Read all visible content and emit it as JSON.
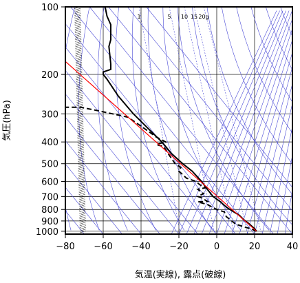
{
  "chart_data": {
    "type": "line",
    "xlabel": "気温(実線), 露点(破線)",
    "ylabel": "気圧(hPa)",
    "xlim": [
      -80,
      40
    ],
    "ylim_hpa": [
      1030,
      100
    ],
    "y_scale": "log (inverted)",
    "x_ticks": [
      "−80",
      "−60",
      "−40",
      "−20",
      "0",
      "20",
      "40"
    ],
    "x_tick_values": [
      -80,
      -60,
      -40,
      -20,
      0,
      20,
      40
    ],
    "y_ticks": [
      "100",
      "200",
      "300",
      "400",
      "500",
      "600",
      "700",
      "800",
      "900",
      "1000"
    ],
    "y_tick_values": [
      100,
      200,
      300,
      400,
      500,
      600,
      700,
      800,
      900,
      1000
    ],
    "mixing_ratio_labels": [
      "1",
      "5",
      "10",
      "15",
      "20g"
    ],
    "mixing_ratio_values": [
      1,
      5,
      10,
      15,
      20
    ],
    "grid": true,
    "series": [
      {
        "style": "solid",
        "color": "#000000",
        "points": [
          [
            21,
            1000
          ],
          [
            20,
            975
          ],
          [
            17,
            925
          ],
          [
            14,
            885
          ],
          [
            12,
            850
          ],
          [
            8,
            810
          ],
          [
            5,
            780
          ],
          [
            2,
            740
          ],
          [
            -2,
            700
          ],
          [
            -5,
            650
          ],
          [
            -8,
            600
          ],
          [
            -13,
            540
          ],
          [
            -18,
            500
          ],
          [
            -24,
            450
          ],
          [
            -29,
            400
          ],
          [
            -36,
            350
          ],
          [
            -44,
            300
          ],
          [
            -52,
            250
          ],
          [
            -58,
            210
          ],
          [
            -60,
            200
          ],
          [
            -60,
            195
          ],
          [
            -56,
            190
          ],
          [
            -56,
            180
          ],
          [
            -57,
            150
          ],
          [
            -56,
            140
          ],
          [
            -56,
            120
          ],
          [
            -58,
            110
          ],
          [
            -59,
            100
          ]
        ]
      },
      {
        "style": "dashed",
        "color": "#000000",
        "points": [
          [
            21,
            1000
          ],
          [
            18,
            975
          ],
          [
            15,
            960
          ],
          [
            10,
            930
          ],
          [
            5,
            860
          ],
          [
            4,
            820
          ],
          [
            0,
            800
          ],
          [
            -5,
            760
          ],
          [
            -10,
            740
          ],
          [
            -5,
            735
          ],
          [
            -8,
            710
          ],
          [
            -10,
            700
          ],
          [
            -7,
            680
          ],
          [
            -10,
            650
          ],
          [
            -6,
            640
          ],
          [
            -9,
            620
          ],
          [
            -11,
            600
          ],
          [
            -16,
            580
          ],
          [
            -20,
            540
          ],
          [
            -19,
            520
          ],
          [
            -22,
            500
          ],
          [
            -25,
            460
          ],
          [
            -28,
            420
          ],
          [
            -32,
            410
          ],
          [
            -27,
            400
          ],
          [
            -32,
            380
          ],
          [
            -40,
            340
          ],
          [
            -47,
            310
          ],
          [
            -63,
            290
          ],
          [
            -72,
            280
          ],
          [
            -80,
            280
          ]
        ]
      },
      {
        "style": "solid",
        "color": "#ff0000",
        "points": [
          [
            21,
            1000
          ],
          [
            -80,
            175
          ]
        ]
      }
    ]
  }
}
